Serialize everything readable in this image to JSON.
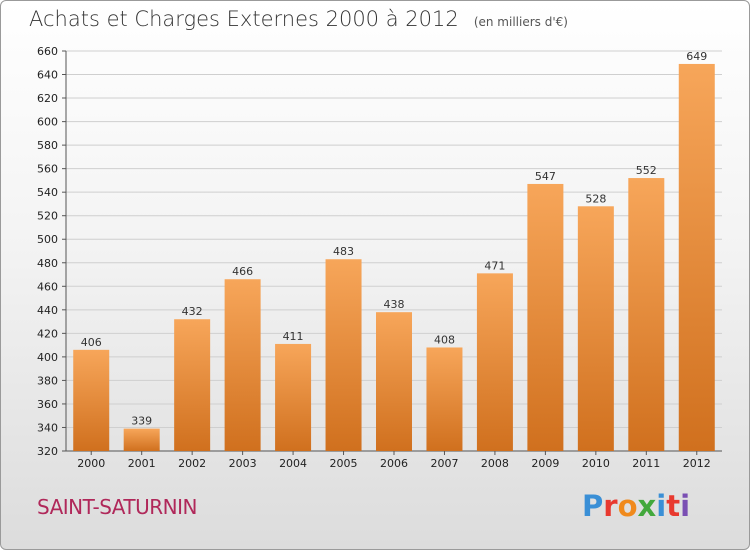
{
  "title": "Achats et Charges Externes 2000 à 2012",
  "subtitle": "(en milliers d'€)",
  "commune": "SAINT-SATURNIN",
  "logo": {
    "text": "Proxiti",
    "colors": [
      "#3a8fd6",
      "#e8392f",
      "#f08a1c",
      "#43a83c",
      "#3a8fd6",
      "#e8392f",
      "#7a4fb3"
    ]
  },
  "colors": {
    "bar_light": "#f7a65a",
    "bar_dark": "#d0701e",
    "grid": "#cfcfcf"
  },
  "chart_data": {
    "type": "bar",
    "categories": [
      "2000",
      "2001",
      "2002",
      "2003",
      "2004",
      "2005",
      "2006",
      "2007",
      "2008",
      "2009",
      "2010",
      "2011",
      "2012"
    ],
    "values": [
      406,
      339,
      432,
      466,
      411,
      483,
      438,
      408,
      471,
      547,
      528,
      552,
      649
    ],
    "ylim": [
      320,
      660
    ],
    "yticks": [
      320,
      340,
      360,
      380,
      400,
      420,
      440,
      460,
      480,
      500,
      520,
      540,
      560,
      580,
      600,
      620,
      640,
      660
    ],
    "grid": true
  }
}
